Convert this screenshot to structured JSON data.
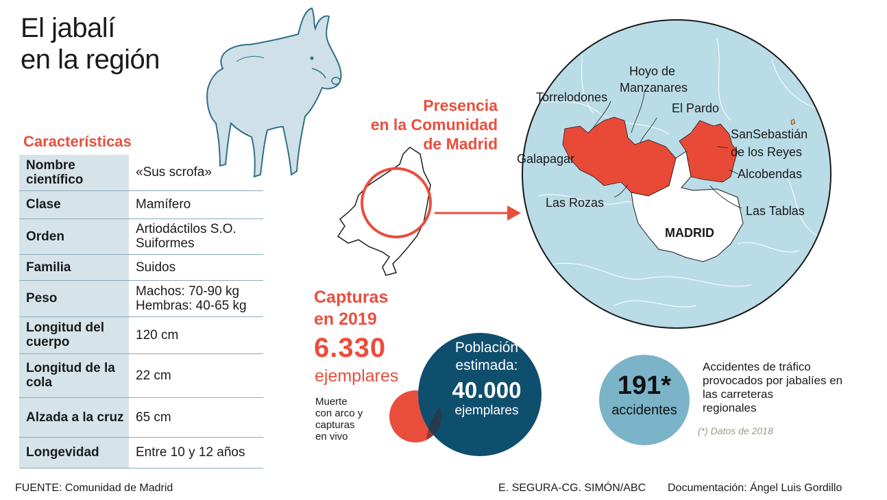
{
  "title_line1": "El jabalí",
  "title_line2": "en la región",
  "characteristics": {
    "heading": "Características",
    "rows": [
      {
        "key": "Nombre científico",
        "value": "«Sus scrofa»"
      },
      {
        "key": "Clase",
        "value": "Mamífero"
      },
      {
        "key": "Orden",
        "value": "Artiodáctilos S.O. Suiformes"
      },
      {
        "key": "Familia",
        "value": "Suidos"
      },
      {
        "key": "Peso",
        "value": "Machos: 70-90 kg Hembras: 40-65 kg"
      },
      {
        "key": "Longitud del cuerpo",
        "value": "120 cm"
      },
      {
        "key": "Longitud de la cola",
        "value": "22 cm"
      },
      {
        "key": "Alzada a la cruz",
        "value": "65 cm"
      },
      {
        "key": "Longevidad",
        "value": "Entre 10 y 12 años"
      }
    ]
  },
  "presence": {
    "line1": "Presencia",
    "line2": "en la Comunidad",
    "line3": "de Madrid"
  },
  "map_labels": {
    "hoyo1": "Hoyo de",
    "hoyo2": "Manzanares",
    "torrelodones": "Torrelodones",
    "el_pardo": "El Pardo",
    "sanse1": "SanSebastián",
    "sanse2": "de los Reyes",
    "galapagar": "Galapagar",
    "alcobendas": "Alcobendas",
    "las_rozas": "Las Rozas",
    "las_tablas": "Las Tablas",
    "madrid": "MADRID"
  },
  "captures": {
    "title1": "Capturas",
    "title2": "en 2019",
    "number": "6.330",
    "unit": "ejemplares",
    "note1": "Muerte",
    "note2": "con arco y",
    "note3": "capturas",
    "note4": "en vivo"
  },
  "population": {
    "label1": "Población",
    "label2": "estimada:",
    "number": "40.000",
    "unit": "ejemplares"
  },
  "accidents": {
    "number": "191*",
    "unit": "accidentes",
    "desc1": "Accidentes de tráfico",
    "desc2": "provocados por jabalíes en",
    "desc3": "las carreteras",
    "desc4": "regionales",
    "note": "(*) Datos de 2018"
  },
  "source": "FUENTE: Comunidad de Madrid",
  "credit": "E. SEGURA-CG. SIMÓN/ABC",
  "documentation": "Documentación: Ángel Luis Gordillo",
  "colors": {
    "accent_red": "#e94e3c",
    "map_blue": "#b9dce7",
    "dark_teal": "#0f4f6e",
    "light_blue": "#7bb3c8",
    "table_key_bg": "#d6e4ea"
  }
}
